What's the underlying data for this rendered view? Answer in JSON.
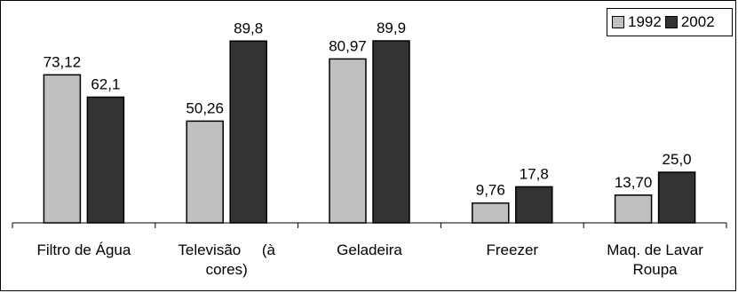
{
  "chart_data": {
    "type": "bar",
    "categories": [
      "Filtro de Água",
      "Televisão (à cores)",
      "Geladeira",
      "Freezer",
      "Maq. de Lavar Roupa"
    ],
    "category_label_lines": [
      [
        "Filtro de Água"
      ],
      [
        "Televisão     (à",
        "cores)"
      ],
      [
        "Geladeira"
      ],
      [
        "Freezer"
      ],
      [
        "Maq. de Lavar",
        "Roupa"
      ]
    ],
    "series": [
      {
        "name": "1992",
        "color": "#c0c0c0",
        "values": [
          73.12,
          50.26,
          80.97,
          9.76,
          13.7
        ],
        "labels": [
          "73,12",
          "50,26",
          "80,97",
          "9,76",
          "13,70"
        ]
      },
      {
        "name": "2002",
        "color": "#333333",
        "values": [
          62.1,
          89.8,
          89.9,
          17.8,
          25.0
        ],
        "labels": [
          "62,1",
          "89,8",
          "89,9",
          "17,8",
          "25,0"
        ]
      }
    ],
    "ylim": [
      0,
      100
    ],
    "grid": false,
    "legend_position": "top-right"
  }
}
